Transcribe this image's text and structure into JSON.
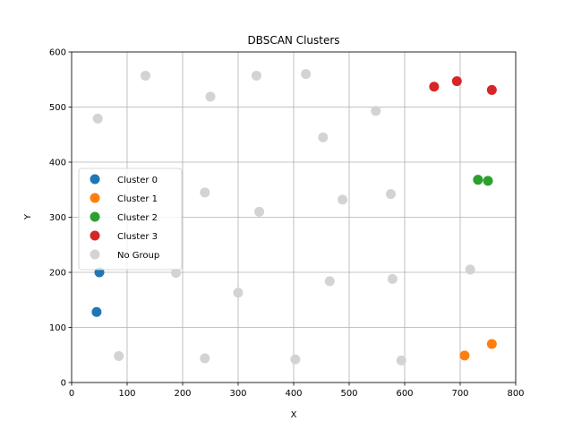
{
  "chart_data": {
    "type": "scatter",
    "title": "DBSCAN Clusters",
    "xlabel": "X",
    "ylabel": "Y",
    "xlim": [
      0,
      800
    ],
    "ylim": [
      0,
      600
    ],
    "xticks": [
      0,
      100,
      200,
      300,
      400,
      500,
      600,
      700,
      800
    ],
    "yticks": [
      0,
      100,
      200,
      300,
      400,
      500,
      600
    ],
    "grid": true,
    "legend_position": "center-left",
    "series": [
      {
        "name": "Cluster 0",
        "color": "#1f77b4",
        "x": [
          50,
          45
        ],
        "y": [
          200,
          128
        ]
      },
      {
        "name": "Cluster 1",
        "color": "#ff7f0e",
        "x": [
          708,
          757
        ],
        "y": [
          49,
          70
        ]
      },
      {
        "name": "Cluster 2",
        "color": "#2ca02c",
        "x": [
          732,
          750
        ],
        "y": [
          368,
          366
        ]
      },
      {
        "name": "Cluster 3",
        "color": "#d62728",
        "x": [
          653,
          694,
          757
        ],
        "y": [
          537,
          547,
          531
        ]
      },
      {
        "name": "No Group",
        "color": "#d3d3d3",
        "x": [
          47,
          133,
          250,
          333,
          422,
          548,
          453,
          240,
          338,
          488,
          575,
          188,
          300,
          465,
          578,
          718,
          85,
          240,
          403,
          594
        ],
        "y": [
          479,
          557,
          519,
          557,
          560,
          493,
          445,
          345,
          310,
          332,
          342,
          199,
          163,
          184,
          188,
          205,
          48,
          44,
          42,
          40
        ]
      }
    ]
  }
}
